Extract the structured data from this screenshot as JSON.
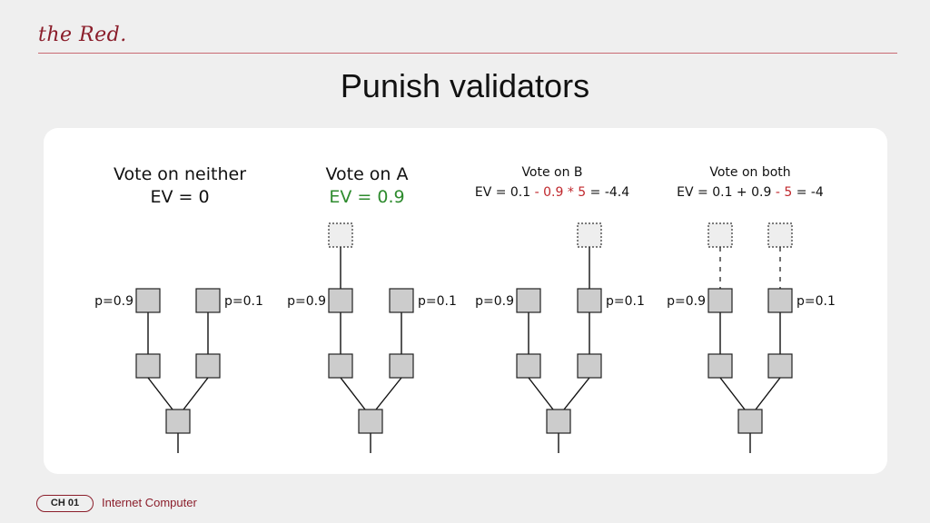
{
  "header": {
    "logo": "the Red.",
    "title": "Punish validators"
  },
  "panels": [
    {
      "id": "neither",
      "heading": "Vote on neither",
      "ev_parts": [
        {
          "text": "EV = 0",
          "color": "#111111"
        }
      ],
      "head_color": "#111111",
      "left_prob": "p=0.9",
      "right_prob": "p=0.1",
      "ghost_left": false,
      "ghost_right": false,
      "ghost_dashed": false
    },
    {
      "id": "vote-a",
      "heading": "Vote on A",
      "ev_parts": [
        {
          "text": "EV = 0.9",
          "color": "#2e8b2e"
        }
      ],
      "head_color": "#2e8b2e",
      "left_prob": "p=0.9",
      "right_prob": "p=0.1",
      "ghost_left": true,
      "ghost_right": false,
      "ghost_dashed": false
    },
    {
      "id": "vote-b",
      "heading": "Vote on B",
      "ev_parts": [
        {
          "text": "EV = 0.1 ",
          "color": "#111111"
        },
        {
          "text": "- 0.9 * 5",
          "color": "#c0282d"
        },
        {
          "text": " = -4.4",
          "color": "#111111"
        }
      ],
      "head_color": "#111111",
      "left_prob": "p=0.9",
      "right_prob": "p=0.1",
      "ghost_left": false,
      "ghost_right": true,
      "ghost_dashed": false
    },
    {
      "id": "both",
      "heading": "Vote on both",
      "ev_parts": [
        {
          "text": "EV = 0.1 + 0.9 ",
          "color": "#111111"
        },
        {
          "text": "- 5",
          "color": "#c0282d"
        },
        {
          "text": " = -4",
          "color": "#111111"
        }
      ],
      "head_color": "#111111",
      "left_prob": "p=0.9",
      "right_prob": "p=0.1",
      "ghost_left": true,
      "ghost_right": true,
      "ghost_dashed": true
    }
  ],
  "footer": {
    "chapter": "CH 01",
    "chapter_name": "Internet Computer"
  }
}
